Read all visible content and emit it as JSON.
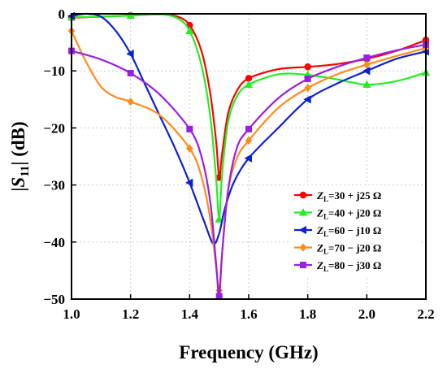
{
  "chart_data": {
    "type": "line",
    "xlabel": "Frequency (GHz)",
    "ylabel": "|S11| (dB)",
    "xlim": [
      1.0,
      2.2
    ],
    "ylim": [
      -50,
      0
    ],
    "xticks": [
      "1.0",
      "1.2",
      "1.4",
      "1.6",
      "1.8",
      "2.0",
      "2.2"
    ],
    "yticks": [
      "0",
      "−10",
      "−20",
      "−30",
      "−40",
      "−50"
    ],
    "grid": true,
    "legend_position": "bottom-right",
    "series": [
      {
        "name": "Z_L=30 + j25 Ω",
        "legend": {
          "main": "Z",
          "sub": "L",
          "rest": "=30 + j25 Ω"
        },
        "color": "#ff0000",
        "marker": "circle",
        "x": [
          1.0,
          1.1,
          1.2,
          1.3,
          1.36,
          1.4,
          1.44,
          1.47,
          1.49,
          1.5,
          1.51,
          1.53,
          1.56,
          1.6,
          1.7,
          1.8,
          1.9,
          2.0,
          2.1,
          2.2
        ],
        "y": [
          -0.7,
          -0.5,
          -0.3,
          -0.1,
          -0.5,
          -2.0,
          -6.5,
          -14.0,
          -22.5,
          -28.7,
          -24.5,
          -17.5,
          -13.5,
          -11.3,
          -9.7,
          -9.3,
          -8.8,
          -7.9,
          -6.5,
          -4.6
        ],
        "markers_at": [
          1.0,
          1.2,
          1.4,
          1.5,
          1.6,
          1.8,
          2.0,
          2.2
        ]
      },
      {
        "name": "Z_L=40 + j20 Ω",
        "legend": {
          "main": "Z",
          "sub": "L",
          "rest": "=40 + j20 Ω"
        },
        "color": "#22ee22",
        "marker": "triangle-up",
        "x": [
          1.0,
          1.1,
          1.2,
          1.3,
          1.36,
          1.4,
          1.44,
          1.47,
          1.49,
          1.5,
          1.51,
          1.53,
          1.56,
          1.6,
          1.7,
          1.8,
          1.9,
          2.0,
          2.1,
          2.2
        ],
        "y": [
          -0.6,
          -0.5,
          -0.3,
          -0.1,
          -0.8,
          -3.0,
          -9.0,
          -18.0,
          -29.0,
          -36.0,
          -28.0,
          -19.0,
          -14.5,
          -12.4,
          -10.6,
          -10.7,
          -11.5,
          -12.4,
          -11.8,
          -10.3
        ],
        "markers_at": [
          1.0,
          1.2,
          1.4,
          1.5,
          1.6,
          1.8,
          2.0,
          2.2
        ]
      },
      {
        "name": "Z_L=60 − j10 Ω",
        "legend": {
          "main": "Z",
          "sub": "L",
          "rest": "=60 − j10 Ω"
        },
        "color": "#0b20d6",
        "marker": "triangle-left",
        "x": [
          1.0,
          1.05,
          1.1,
          1.15,
          1.2,
          1.25,
          1.3,
          1.35,
          1.4,
          1.45,
          1.48,
          1.5,
          1.52,
          1.55,
          1.6,
          1.7,
          1.8,
          1.9,
          2.0,
          2.1,
          2.2
        ],
        "y": [
          -0.4,
          0.0,
          -0.5,
          -3.0,
          -7.0,
          -12.5,
          -18.0,
          -23.5,
          -29.6,
          -36.5,
          -40.3,
          -38.5,
          -34.0,
          -29.5,
          -25.3,
          -20.0,
          -15.0,
          -12.2,
          -10.0,
          -7.9,
          -6.6
        ],
        "markers_at": [
          1.0,
          1.2,
          1.4,
          1.6,
          1.8,
          2.0,
          2.2
        ]
      },
      {
        "name": "Z_L=70 − j20 Ω",
        "legend": {
          "main": "Z",
          "sub": "L",
          "rest": "=70 − j20 Ω"
        },
        "color": "#ff8c1a",
        "marker": "diamond",
        "x": [
          1.0,
          1.05,
          1.1,
          1.15,
          1.2,
          1.3,
          1.4,
          1.44,
          1.47,
          1.49,
          1.5,
          1.51,
          1.53,
          1.56,
          1.6,
          1.7,
          1.8,
          1.9,
          2.0,
          2.1,
          2.2
        ],
        "y": [
          -3.0,
          -8.5,
          -12.8,
          -14.6,
          -15.4,
          -17.8,
          -23.6,
          -28.5,
          -36.0,
          -44.5,
          -48.5,
          -42.0,
          -31.0,
          -25.3,
          -22.2,
          -16.5,
          -13.0,
          -10.6,
          -8.9,
          -7.4,
          -6.0
        ],
        "markers_at": [
          1.0,
          1.2,
          1.4,
          1.5,
          1.6,
          1.8,
          2.0,
          2.2
        ]
      },
      {
        "name": "Z_L=80 − j30 Ω",
        "legend": {
          "main": "Z",
          "sub": "L",
          "rest": "=80 − j30 Ω"
        },
        "color": "#9a1ee6",
        "marker": "square",
        "x": [
          1.0,
          1.1,
          1.2,
          1.3,
          1.4,
          1.44,
          1.47,
          1.49,
          1.5,
          1.51,
          1.53,
          1.56,
          1.6,
          1.7,
          1.8,
          1.9,
          2.0,
          2.1,
          2.2
        ],
        "y": [
          -6.5,
          -8.0,
          -10.4,
          -14.2,
          -20.2,
          -25.0,
          -33.0,
          -44.0,
          -49.5,
          -42.0,
          -31.0,
          -23.5,
          -20.2,
          -14.8,
          -11.4,
          -9.3,
          -7.7,
          -6.4,
          -5.4
        ],
        "markers_at": [
          1.0,
          1.2,
          1.4,
          1.5,
          1.6,
          1.8,
          2.0,
          2.2
        ]
      }
    ]
  }
}
